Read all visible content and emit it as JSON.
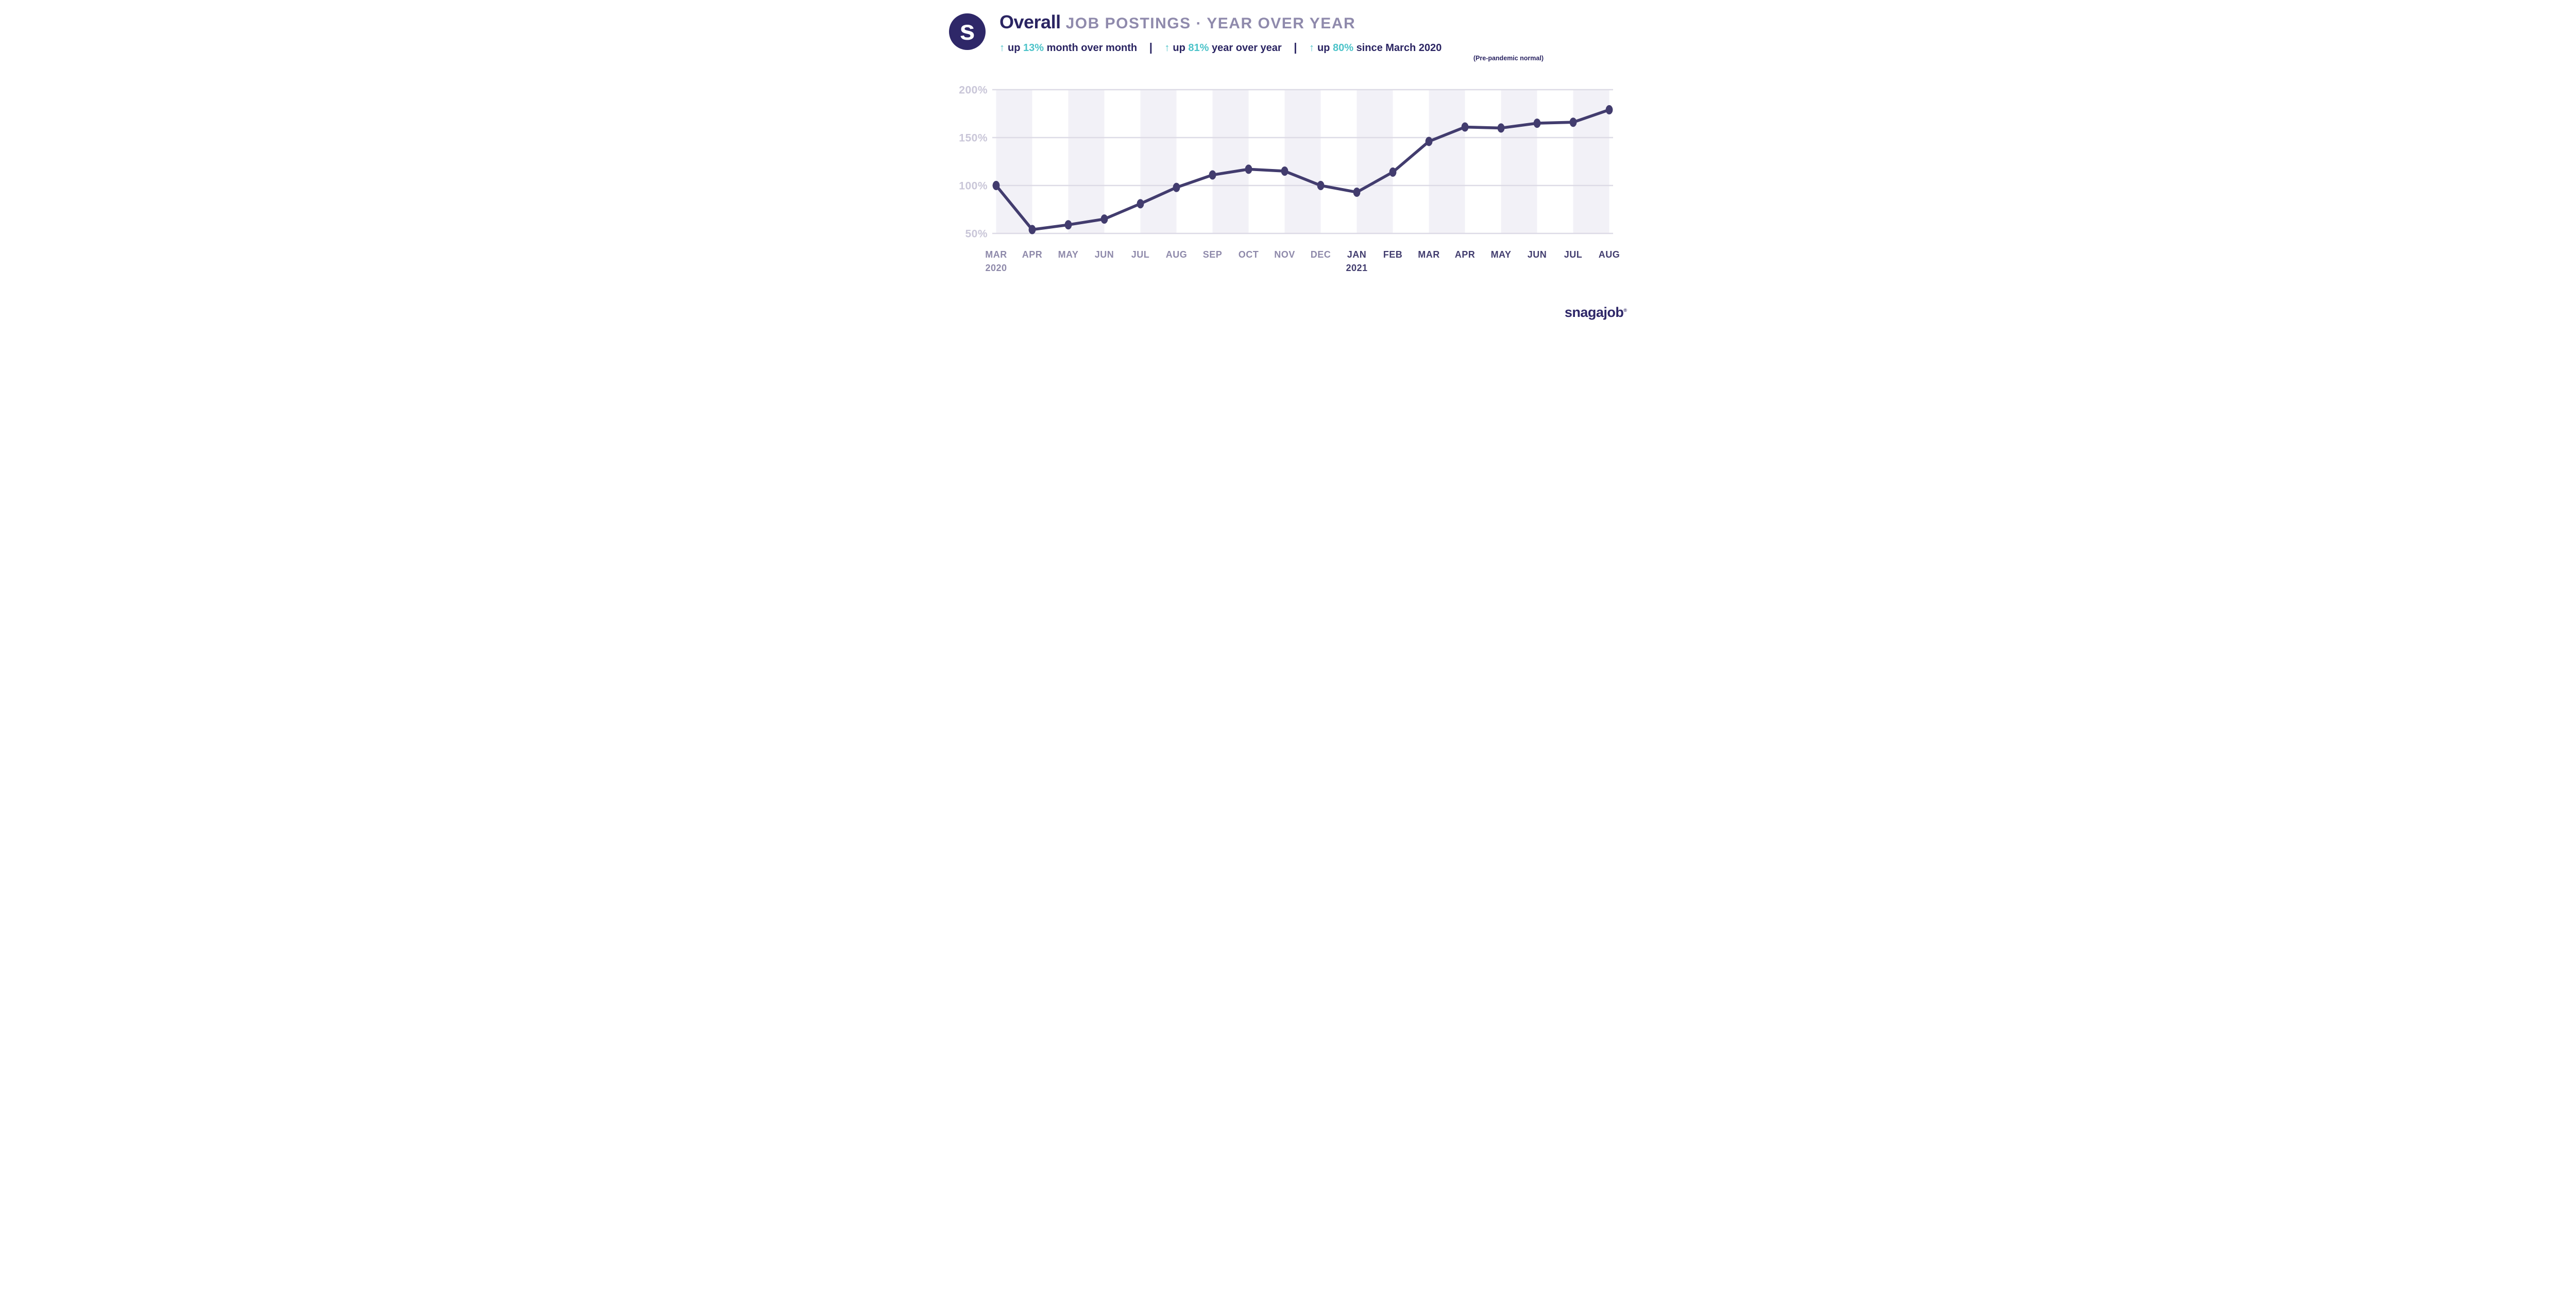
{
  "header": {
    "logo_letter": "s",
    "title_main": "Overall",
    "title_sub": "JOB POSTINGS · YEAR OVER YEAR",
    "separator": "|",
    "stats": [
      {
        "arrow": "↑",
        "prefix": "up",
        "value": "13%",
        "suffix": "month over month"
      },
      {
        "arrow": "↑",
        "prefix": "up",
        "value": "81%",
        "suffix": "year over year"
      },
      {
        "arrow": "↑",
        "prefix": "up",
        "value": "80%",
        "suffix": "since March 2020"
      }
    ],
    "note": "(Pre-pandemic normal)"
  },
  "footer": {
    "brand": "snagajob",
    "registered": "®"
  },
  "colors": {
    "navy": "#2a2462",
    "teal": "#4cc3c9",
    "title_sub": "#8f8aac",
    "line": "#423c6e",
    "band": "#f2f1f7",
    "grid": "#dddbe6",
    "ytick": "#c9c6d8",
    "m2020": "#8e89aa",
    "m2021": "#413c6e",
    "logo": "#2e2768",
    "background": "#ffffff"
  },
  "chart_data": {
    "type": "line",
    "title": "Overall JOB POSTINGS · YEAR OVER YEAR",
    "xlabel": "",
    "ylabel": "",
    "unit": "%",
    "ylim": [
      50,
      200
    ],
    "y_ticks": [
      200,
      150,
      100,
      50
    ],
    "grid": "horizontal",
    "legend": "none",
    "alternating_month_bands": true,
    "categories": [
      {
        "label": "MAR",
        "year": "2020",
        "sub": "2020"
      },
      {
        "label": "APR",
        "year": "2020"
      },
      {
        "label": "MAY",
        "year": "2020"
      },
      {
        "label": "JUN",
        "year": "2020"
      },
      {
        "label": "JUL",
        "year": "2020"
      },
      {
        "label": "AUG",
        "year": "2020"
      },
      {
        "label": "SEP",
        "year": "2020"
      },
      {
        "label": "OCT",
        "year": "2020"
      },
      {
        "label": "NOV",
        "year": "2020"
      },
      {
        "label": "DEC",
        "year": "2020"
      },
      {
        "label": "JAN",
        "year": "2021",
        "sub": "2021"
      },
      {
        "label": "FEB",
        "year": "2021"
      },
      {
        "label": "MAR",
        "year": "2021"
      },
      {
        "label": "APR",
        "year": "2021"
      },
      {
        "label": "MAY",
        "year": "2021"
      },
      {
        "label": "JUN",
        "year": "2021"
      },
      {
        "label": "JUL",
        "year": "2021"
      },
      {
        "label": "AUG",
        "year": "2021"
      }
    ],
    "values": [
      100,
      54,
      59,
      65,
      81,
      98,
      111,
      117,
      115,
      100,
      93,
      114,
      146,
      161,
      160,
      165,
      166,
      179
    ]
  }
}
